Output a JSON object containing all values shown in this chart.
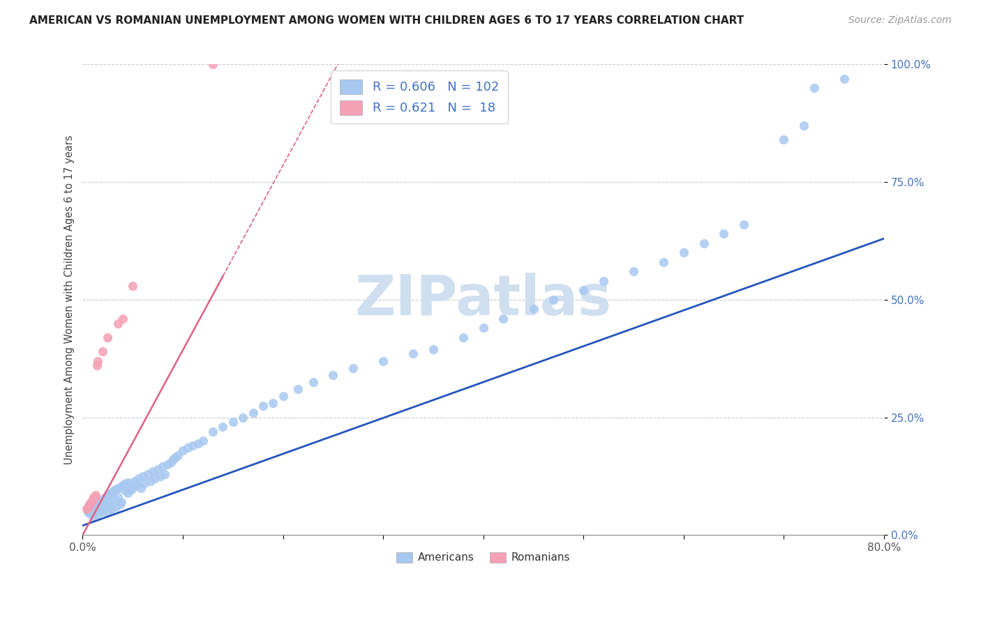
{
  "title": "AMERICAN VS ROMANIAN UNEMPLOYMENT AMONG WOMEN WITH CHILDREN AGES 6 TO 17 YEARS CORRELATION CHART",
  "source": "Source: ZipAtlas.com",
  "ylabel": "Unemployment Among Women with Children Ages 6 to 17 years",
  "xlim": [
    0.0,
    0.8
  ],
  "ylim": [
    0.0,
    1.0
  ],
  "american_R": 0.606,
  "american_N": 102,
  "romanian_R": 0.621,
  "romanian_N": 18,
  "american_color": "#a8c8f0",
  "romanian_color": "#f4a0b5",
  "american_line_color": "#2255bb",
  "romanian_line_color": "#e06080",
  "watermark": "ZIPatlas",
  "watermark_color": "#d0dff0",
  "tick_label_color": "#4472c4",
  "am_x": [
    0.005,
    0.006,
    0.007,
    0.008,
    0.009,
    0.01,
    0.01,
    0.011,
    0.012,
    0.013,
    0.014,
    0.015,
    0.015,
    0.016,
    0.017,
    0.018,
    0.019,
    0.02,
    0.02,
    0.021,
    0.022,
    0.023,
    0.024,
    0.025,
    0.025,
    0.026,
    0.027,
    0.028,
    0.029,
    0.03,
    0.031,
    0.032,
    0.033,
    0.034,
    0.035,
    0.036,
    0.037,
    0.038,
    0.039,
    0.04,
    0.042,
    0.043,
    0.045,
    0.046,
    0.048,
    0.05,
    0.052,
    0.054,
    0.056,
    0.058,
    0.06,
    0.062,
    0.065,
    0.068,
    0.07,
    0.072,
    0.075,
    0.078,
    0.08,
    0.082,
    0.085,
    0.088,
    0.09,
    0.092,
    0.095,
    0.1,
    0.105,
    0.11,
    0.115,
    0.12,
    0.13,
    0.14,
    0.15,
    0.16,
    0.17,
    0.18,
    0.19,
    0.2,
    0.215,
    0.23,
    0.25,
    0.27,
    0.3,
    0.33,
    0.35,
    0.38,
    0.4,
    0.42,
    0.45,
    0.47,
    0.5,
    0.52,
    0.55,
    0.58,
    0.6,
    0.62,
    0.64,
    0.66,
    0.7,
    0.72,
    0.73,
    0.76
  ],
  "am_y": [
    0.05,
    0.048,
    0.052,
    0.045,
    0.055,
    0.06,
    0.04,
    0.058,
    0.062,
    0.055,
    0.065,
    0.07,
    0.045,
    0.068,
    0.06,
    0.072,
    0.055,
    0.075,
    0.05,
    0.078,
    0.065,
    0.08,
    0.06,
    0.085,
    0.05,
    0.088,
    0.07,
    0.09,
    0.055,
    0.092,
    0.075,
    0.095,
    0.06,
    0.098,
    0.08,
    0.1,
    0.065,
    0.102,
    0.07,
    0.105,
    0.095,
    0.11,
    0.09,
    0.112,
    0.095,
    0.1,
    0.115,
    0.105,
    0.12,
    0.1,
    0.125,
    0.11,
    0.13,
    0.115,
    0.135,
    0.12,
    0.14,
    0.125,
    0.145,
    0.13,
    0.15,
    0.155,
    0.16,
    0.165,
    0.17,
    0.18,
    0.185,
    0.19,
    0.195,
    0.2,
    0.22,
    0.23,
    0.24,
    0.25,
    0.26,
    0.275,
    0.28,
    0.295,
    0.31,
    0.325,
    0.34,
    0.355,
    0.37,
    0.385,
    0.395,
    0.42,
    0.44,
    0.46,
    0.48,
    0.5,
    0.52,
    0.54,
    0.56,
    0.58,
    0.6,
    0.62,
    0.64,
    0.66,
    0.84,
    0.87,
    0.95,
    0.97
  ],
  "ro_x": [
    0.004,
    0.005,
    0.006,
    0.007,
    0.008,
    0.009,
    0.01,
    0.011,
    0.012,
    0.013,
    0.014,
    0.015,
    0.02,
    0.025,
    0.035,
    0.04,
    0.05,
    0.13
  ],
  "ro_y": [
    0.055,
    0.06,
    0.06,
    0.065,
    0.07,
    0.07,
    0.075,
    0.08,
    0.08,
    0.085,
    0.36,
    0.37,
    0.39,
    0.42,
    0.45,
    0.46,
    0.53,
    1.0
  ],
  "am_line_x0": 0.0,
  "am_line_y0": 0.02,
  "am_line_x1": 0.8,
  "am_line_y1": 0.63,
  "ro_line_x0": 0.0,
  "ro_line_y0": 0.0,
  "ro_line_x1": 0.14,
  "ro_line_y1": 0.55
}
